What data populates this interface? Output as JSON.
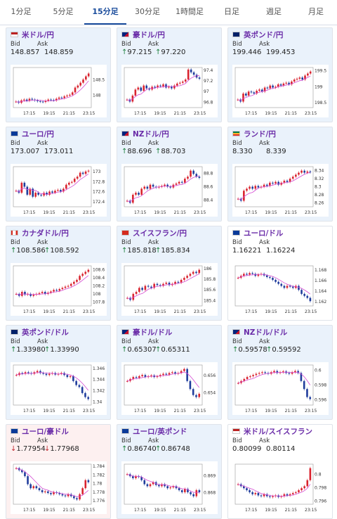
{
  "tabs": [
    "1分足",
    "5分足",
    "15分足",
    "30分足",
    "1時間足",
    "日足",
    "週足",
    "月足"
  ],
  "active_tab": 2,
  "labels": {
    "bid": "Bid",
    "ask": "Ask"
  },
  "colors": {
    "accent": "#1a4c9c",
    "pair_text": "#6a2ca8",
    "candle_up": "#d9232e",
    "candle_down": "#1f3c9c",
    "ma": "#d54bd3",
    "up_bg": "#eaf2fb",
    "down_bg": "#fdf0f0"
  },
  "cards": [
    {
      "pair": "米ドル/円",
      "flag": "us",
      "bid": "148.857",
      "ask": "148.859",
      "dir": "none",
      "bg": "up",
      "chart_data": {
        "type": "candlestick",
        "x_ticks": [
          "17:15",
          "19:15",
          "21:15",
          "23:15"
        ],
        "y_ticks": [
          "148",
          "148.5"
        ],
        "ylim": [
          147.6,
          148.9
        ]
      }
    },
    {
      "pair": "豪ドル/円",
      "flag": "au",
      "bid": "97.215",
      "ask": "97.220",
      "dir": "up",
      "bg": "up",
      "chart_data": {
        "type": "candlestick",
        "x_ticks": [
          "17:15",
          "19:15",
          "21:15",
          "23:15"
        ],
        "y_ticks": [
          "96.8",
          "97",
          "97.2",
          "97.4"
        ],
        "ylim": [
          96.7,
          97.45
        ]
      }
    },
    {
      "pair": "英ポンド/円",
      "flag": "gb",
      "bid": "199.446",
      "ask": "199.453",
      "dir": "none",
      "bg": "up",
      "chart_data": {
        "type": "candlestick",
        "x_ticks": [
          "17:15",
          "19:15",
          "21:15",
          "23:15"
        ],
        "y_ticks": [
          "198.5",
          "199",
          "199.5"
        ],
        "ylim": [
          198.35,
          199.6
        ]
      }
    },
    {
      "pair": "ユーロ/円",
      "flag": "eu",
      "bid": "173.007",
      "ask": "173.011",
      "dir": "none",
      "bg": "up",
      "chart_data": {
        "type": "candlestick",
        "x_ticks": [
          "17:15",
          "19:15",
          "21:15",
          "23:15"
        ],
        "y_ticks": [
          "172.4",
          "172.6",
          "172.8",
          "173"
        ],
        "ylim": [
          172.3,
          173.1
        ]
      }
    },
    {
      "pair": "NZドル/円",
      "flag": "nz",
      "bid": "88.696",
      "ask": "88.703",
      "dir": "up",
      "bg": "up",
      "chart_data": {
        "type": "candlestick",
        "x_ticks": [
          "17:15",
          "19:15",
          "21:15",
          "23:15"
        ],
        "y_ticks": [
          "88.4",
          "88.6",
          "88.8"
        ],
        "ylim": [
          88.3,
          88.9
        ]
      }
    },
    {
      "pair": "ランド/円",
      "flag": "za",
      "bid": "8.330",
      "ask": "8.339",
      "dir": "none",
      "bg": "up",
      "chart_data": {
        "type": "candlestick",
        "x_ticks": [
          "17:15",
          "19:15",
          "21:15",
          "23:15"
        ],
        "y_ticks": [
          "8.26",
          "8.28",
          "8.3",
          "8.32",
          "8.34"
        ],
        "ylim": [
          8.25,
          8.35
        ]
      }
    },
    {
      "pair": "カナダドル/円",
      "flag": "ca",
      "bid": "108.586",
      "ask": "108.592",
      "dir": "up",
      "bg": "up",
      "chart_data": {
        "type": "candlestick",
        "x_ticks": [
          "17:15",
          "19:15",
          "21:15",
          "23:15"
        ],
        "y_ticks": [
          "107.8",
          "108",
          "108.2",
          "108.4",
          "108.6"
        ],
        "ylim": [
          107.7,
          108.7
        ]
      }
    },
    {
      "pair": "スイスフラン/円",
      "flag": "ch",
      "bid": "185.818",
      "ask": "185.834",
      "dir": "up",
      "bg": "up",
      "chart_data": {
        "type": "candlestick",
        "x_ticks": [
          "17:15",
          "19:15",
          "21:15",
          "23:15"
        ],
        "y_ticks": [
          "185.4",
          "185.6",
          "185.8",
          "186"
        ],
        "ylim": [
          185.3,
          186.05
        ]
      }
    },
    {
      "pair": "ユーロ/ドル",
      "flag": "eu",
      "bid": "1.16221",
      "ask": "1.16224",
      "dir": "none",
      "bg": "flat",
      "chart_data": {
        "type": "candlestick",
        "x_ticks": [
          "17:15",
          "19:15",
          "21:15",
          "23:15"
        ],
        "y_ticks": [
          "1.162",
          "1.164",
          "1.166",
          "1.168"
        ],
        "ylim": [
          1.1612,
          1.1688
        ]
      }
    },
    {
      "pair": "英ポンド/ドル",
      "flag": "gb",
      "bid": "1.33980",
      "ask": "1.33990",
      "dir": "up",
      "bg": "up",
      "chart_data": {
        "type": "candlestick",
        "x_ticks": [
          "17:15",
          "19:15",
          "21:15",
          "23:15"
        ],
        "y_ticks": [
          "1.34",
          "1.342",
          "1.344",
          "1.346"
        ],
        "ylim": [
          1.3394,
          1.3466
        ]
      }
    },
    {
      "pair": "豪ドル/ドル",
      "flag": "au",
      "bid": "0.65307",
      "ask": "0.65311",
      "dir": "up",
      "bg": "up",
      "chart_data": {
        "type": "candlestick",
        "x_ticks": [
          "17:15",
          "19:15",
          "21:15",
          "23:15"
        ],
        "y_ticks": [
          "0.654",
          "0.656"
        ],
        "ylim": [
          0.6526,
          0.6572
        ]
      }
    },
    {
      "pair": "NZドル/ドル",
      "flag": "nz",
      "bid": "0.59578",
      "ask": "0.59592",
      "dir": "up",
      "bg": "up",
      "chart_data": {
        "type": "candlestick",
        "x_ticks": [
          "17:15",
          "19:15",
          "21:15",
          "23:15"
        ],
        "y_ticks": [
          "0.596",
          "0.598",
          "0.6"
        ],
        "ylim": [
          0.5953,
          0.6007
        ]
      }
    },
    {
      "pair": "ユーロ/豪ドル",
      "flag": "eu",
      "bid": "1.77954",
      "ask": "1.77968",
      "dir": "down",
      "bg": "down",
      "chart_data": {
        "type": "candlestick",
        "x_ticks": [
          "17:15",
          "19:15",
          "21:15",
          "23:15"
        ],
        "y_ticks": [
          "1.776",
          "1.778",
          "1.78",
          "1.782",
          "1.784"
        ],
        "ylim": [
          1.7752,
          1.7845
        ]
      }
    },
    {
      "pair": "ユーロ/英ポンド",
      "flag": "eu",
      "bid": "0.86740",
      "ask": "0.86748",
      "dir": "up",
      "bg": "up",
      "chart_data": {
        "type": "candlestick",
        "x_ticks": [
          "17:15",
          "19:15",
          "21:15",
          "23:15"
        ],
        "y_ticks": [
          "0.868",
          "0.869"
        ],
        "ylim": [
          0.8673,
          0.8697
        ]
      }
    },
    {
      "pair": "米ドル/スイスフラン",
      "flag": "us",
      "bid": "0.80099",
      "ask": "0.80114",
      "dir": "none",
      "bg": "flat",
      "chart_data": {
        "type": "candlestick",
        "x_ticks": [
          "17:15",
          "19:15",
          "21:15",
          "23:15"
        ],
        "y_ticks": [
          "0.796",
          "0.798",
          "0.8"
        ],
        "ylim": [
          0.7955,
          0.8015
        ]
      }
    }
  ]
}
